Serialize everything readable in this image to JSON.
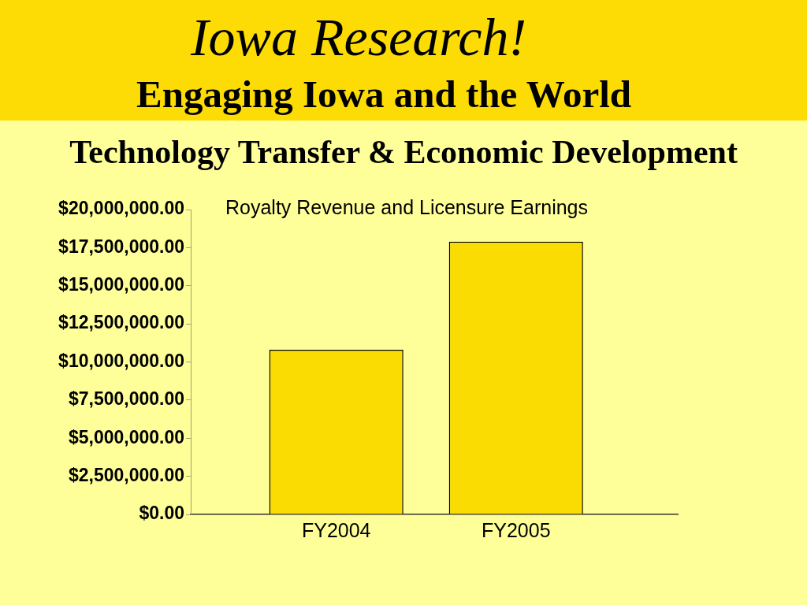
{
  "chart_data": {
    "type": "bar",
    "title": "Royalty Revenue and Licensure Earnings",
    "subtitle": "Technology Transfer & Economic Development",
    "annotations": [
      "Iowa Research!",
      "Engaging Iowa and the World"
    ],
    "categories": [
      "FY2004",
      "FY2005"
    ],
    "values": [
      10800000,
      17900000
    ],
    "color": "#fadc02",
    "ylim": [
      0,
      20000000
    ],
    "yticks": [
      {
        "value": 0,
        "label": "$0.00"
      },
      {
        "value": 2500000,
        "label": "$2,500,000.00"
      },
      {
        "value": 5000000,
        "label": "$5,000,000.00"
      },
      {
        "value": 7500000,
        "label": "$7,500,000.00"
      },
      {
        "value": 10000000,
        "label": "$10,000,000.00"
      },
      {
        "value": 12500000,
        "label": "$12,500,000.00"
      },
      {
        "value": 15000000,
        "label": "$15,000,000.00"
      },
      {
        "value": 17500000,
        "label": "$17,500,000.00"
      },
      {
        "value": 20000000,
        "label": "$20,000,000.00"
      }
    ],
    "grid": false,
    "legend": false
  }
}
